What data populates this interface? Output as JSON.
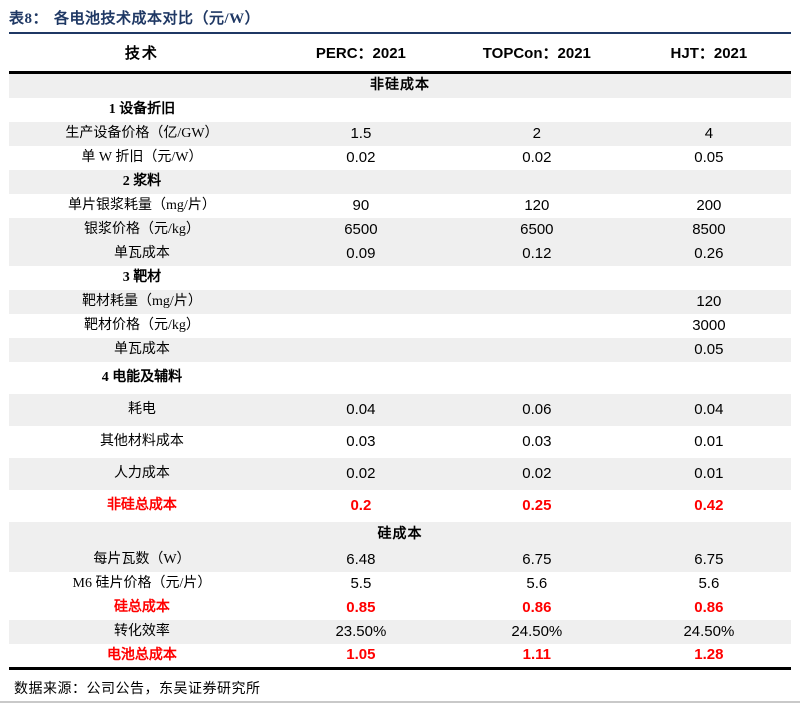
{
  "page": {
    "title_label": "表8：",
    "title_text": "各电池技术成本对比（元/W）",
    "source_note": "数据来源：公司公告，东吴证券研究所"
  },
  "columns": [
    "技术",
    "PERC：2021",
    "TOPCon：2021",
    "HJT：2021"
  ],
  "rows": [
    {
      "type": "section",
      "shade": "gray",
      "tall": false,
      "label": "非硅成本",
      "values": [
        "",
        "",
        ""
      ]
    },
    {
      "type": "group",
      "shade": "white",
      "tall": false,
      "label": "1 设备折旧",
      "values": [
        "",
        "",
        ""
      ]
    },
    {
      "type": "data",
      "shade": "gray",
      "tall": false,
      "label": "生产设备价格（亿/GW）",
      "values": [
        "1.5",
        "2",
        "4"
      ]
    },
    {
      "type": "data",
      "shade": "white",
      "tall": false,
      "label": "单 W 折旧（元/W）",
      "values": [
        "0.02",
        "0.02",
        "0.05"
      ]
    },
    {
      "type": "group",
      "shade": "gray",
      "tall": false,
      "label": "2 浆料",
      "values": [
        "",
        "",
        ""
      ]
    },
    {
      "type": "data",
      "shade": "white",
      "tall": false,
      "label": "单片银浆耗量（mg/片）",
      "values": [
        "90",
        "120",
        "200"
      ]
    },
    {
      "type": "data",
      "shade": "gray",
      "tall": false,
      "label": "银浆价格（元/kg）",
      "values": [
        "6500",
        "6500",
        "8500"
      ]
    },
    {
      "type": "data",
      "shade": "gray",
      "tall": false,
      "label": "单瓦成本",
      "values": [
        "0.09",
        "0.12",
        "0.26"
      ]
    },
    {
      "type": "group",
      "shade": "white",
      "tall": false,
      "label": "3 靶材",
      "values": [
        "",
        "",
        ""
      ]
    },
    {
      "type": "data",
      "shade": "gray",
      "tall": false,
      "label": "靶材耗量（mg/片）",
      "values": [
        "",
        "",
        "120"
      ]
    },
    {
      "type": "data",
      "shade": "white",
      "tall": false,
      "label": "靶材价格（元/kg）",
      "values": [
        "",
        "",
        "3000"
      ]
    },
    {
      "type": "data",
      "shade": "gray",
      "tall": false,
      "label": "单瓦成本",
      "values": [
        "",
        "",
        "0.05"
      ]
    },
    {
      "type": "group",
      "shade": "white",
      "tall": true,
      "label": "4 电能及辅料",
      "values": [
        "",
        "",
        ""
      ]
    },
    {
      "type": "data",
      "shade": "gray",
      "tall": true,
      "label": "耗电",
      "values": [
        "0.04",
        "0.06",
        "0.04"
      ]
    },
    {
      "type": "data",
      "shade": "white",
      "tall": true,
      "label": "其他材料成本",
      "values": [
        "0.03",
        "0.03",
        "0.01"
      ]
    },
    {
      "type": "data",
      "shade": "gray",
      "tall": true,
      "label": "人力成本",
      "values": [
        "0.02",
        "0.02",
        "0.01"
      ]
    },
    {
      "type": "total",
      "shade": "white",
      "tall": true,
      "label": "非硅总成本",
      "values": [
        "0.2",
        "0.25",
        "0.42"
      ]
    },
    {
      "type": "section",
      "shade": "gray",
      "tall": false,
      "label": "硅成本",
      "values": [
        "",
        "",
        ""
      ]
    },
    {
      "type": "data",
      "shade": "gray",
      "tall": false,
      "label": "每片瓦数（W）",
      "values": [
        "6.48",
        "6.75",
        "6.75"
      ]
    },
    {
      "type": "data",
      "shade": "white",
      "tall": false,
      "label": "M6 硅片价格（元/片）",
      "values": [
        "5.5",
        "5.6",
        "5.6"
      ]
    },
    {
      "type": "total",
      "shade": "white",
      "tall": false,
      "label": "硅总成本",
      "values": [
        "0.85",
        "0.86",
        "0.86"
      ]
    },
    {
      "type": "data",
      "shade": "gray",
      "tall": false,
      "label": "转化效率",
      "values": [
        "23.50%",
        "24.50%",
        "24.50%"
      ]
    },
    {
      "type": "total",
      "shade": "white",
      "tall": false,
      "label": "电池总成本",
      "values": [
        "1.05",
        "1.11",
        "1.28"
      ]
    }
  ],
  "colors": {
    "title_navy": "#1f3864",
    "total_red": "#ff0000",
    "stripe_gray": "#efefef",
    "rule_dark": "#000000"
  }
}
